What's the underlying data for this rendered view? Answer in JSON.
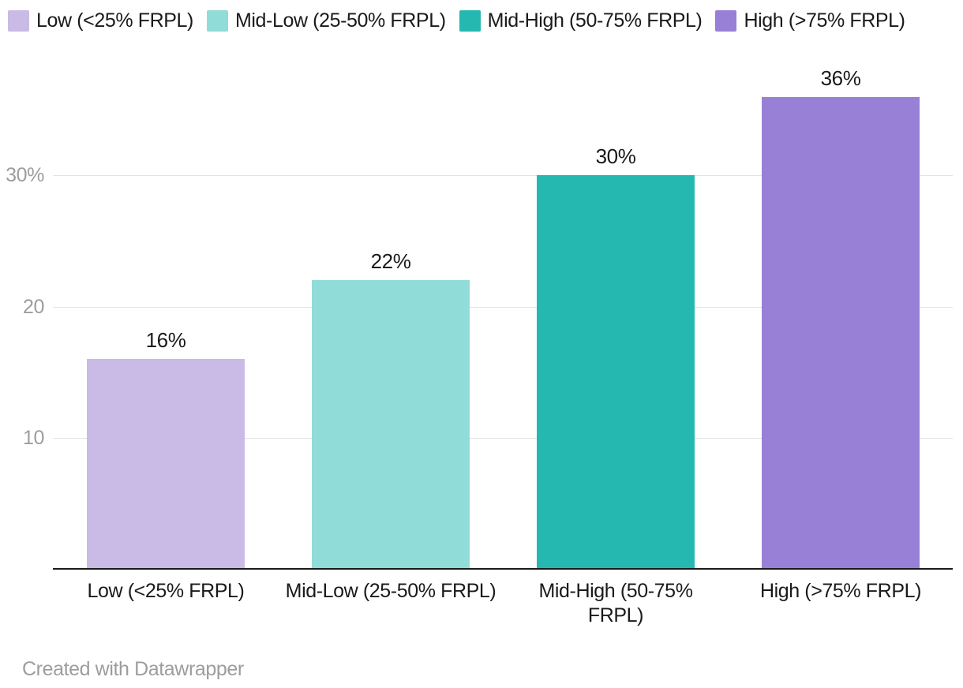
{
  "chart_data": {
    "type": "bar",
    "title": "",
    "xlabel": "",
    "ylabel": "",
    "categories": [
      "Low (<25% FRPL)",
      "Mid-Low (25-50% FRPL)",
      "Mid-High (50-75% FRPL)",
      "High (>75% FRPL)"
    ],
    "values": [
      16,
      22,
      30,
      36
    ],
    "value_labels": [
      "16%",
      "22%",
      "30%",
      "36%"
    ],
    "x_tick_labels": [
      "Low (<25% FRPL)",
      "Mid-Low (25-50% FRPL)",
      "Mid-High (50-75%\nFRPL)",
      "High (>75% FRPL)"
    ],
    "y_ticks": [
      {
        "value": 10,
        "label": "10"
      },
      {
        "value": 20,
        "label": "20"
      },
      {
        "value": 30,
        "label": "30%"
      }
    ],
    "ylim": [
      0,
      39
    ],
    "grid": true,
    "legend_position": "top",
    "bar_colors": [
      "#cabae6",
      "#90dcd8",
      "#24b8b1",
      "#9880d6"
    ]
  },
  "legend": {
    "items": [
      {
        "label": "Low (<25% FRPL)",
        "color": "#cabae6"
      },
      {
        "label": "Mid-Low (25-50% FRPL)",
        "color": "#90dcd8"
      },
      {
        "label": "Mid-High (50-75% FRPL)",
        "color": "#24b8b1"
      },
      {
        "label": "High (>75% FRPL)",
        "color": "#9880d6"
      }
    ]
  },
  "footer": {
    "credit": "Created with Datawrapper"
  },
  "colors": {
    "background": "#ffffff",
    "axis_line": "#1a1a1a",
    "gridline": "#e3e3e3",
    "tick_label": "#9d9d9d",
    "value_label": "#1a1a1a",
    "category_label": "#1a1a1a",
    "footer_text": "#9d9d9d"
  }
}
